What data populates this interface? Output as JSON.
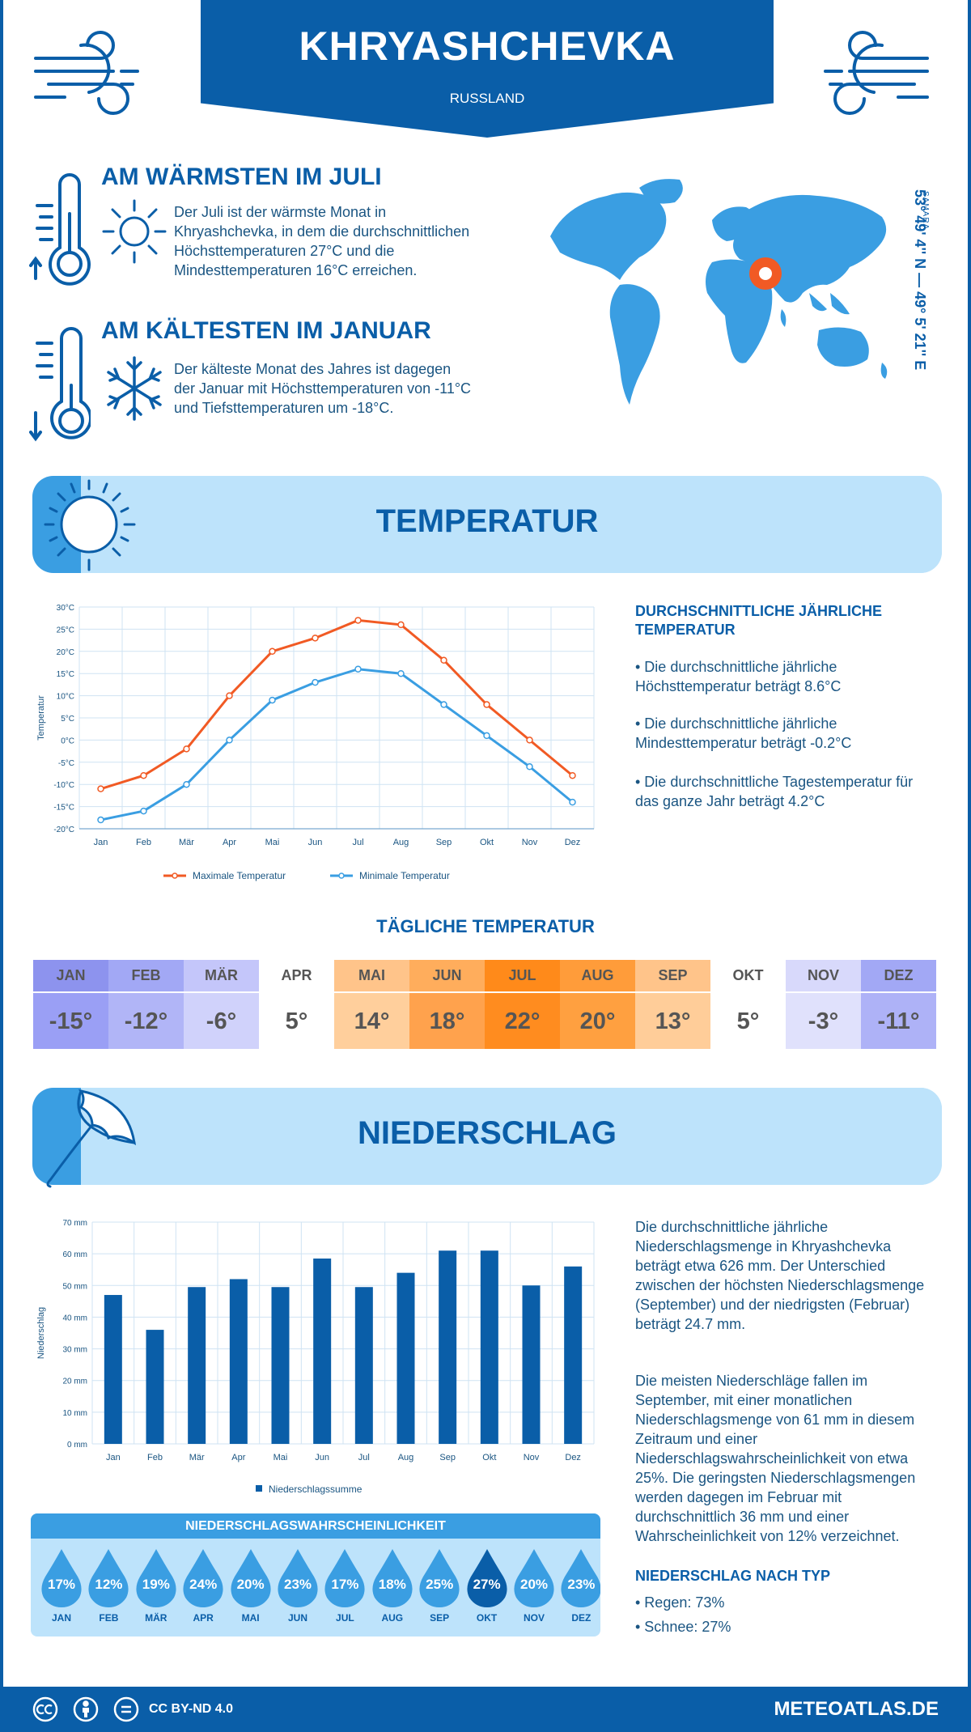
{
  "header": {
    "city": "KHRYASHCHEVKA",
    "country": "RUSSLAND"
  },
  "warmest": {
    "title": "AM WÄRMSTEN IM JULI",
    "text": "Der Juli ist der wärmste Monat in Khryashchevka, in dem die durchschnittlichen Höchsttemperaturen 27°C und die Mindesttemperaturen 16°C erreichen."
  },
  "coldest": {
    "title": "AM KÄLTESTEN IM JANUAR",
    "text": "Der kälteste Monat des Jahres ist dagegen der Januar mit Höchsttemperaturen von -11°C und Tiefsttemperaturen um -18°C."
  },
  "location": {
    "coords": "53° 49' 4'' N — 49° 5' 21'' E",
    "region": "SAMARA"
  },
  "temperature": {
    "title": "TEMPERATUR",
    "side_title": "DURCHSCHNITTLICHE JÄHRLICHE TEMPERATUR",
    "bullets": [
      "• Die durchschnittliche jährliche Höchsttemperatur beträgt 8.6°C",
      "• Die durchschnittliche jährliche Mindesttemperatur beträgt -0.2°C",
      "• Die durchschnittliche Tagestemperatur für das ganze Jahr beträgt 4.2°C"
    ]
  },
  "daily": {
    "title": "TÄGLICHE TEMPERATUR",
    "months": [
      "JAN",
      "FEB",
      "MÄR",
      "APR",
      "MAI",
      "JUN",
      "JUL",
      "AUG",
      "SEP",
      "OKT",
      "NOV",
      "DEZ"
    ],
    "values": [
      "-15°",
      "-12°",
      "-6°",
      "5°",
      "14°",
      "18°",
      "22°",
      "20°",
      "13°",
      "5°",
      "-3°",
      "-11°"
    ],
    "head_colors": [
      "#8d93ee",
      "#a2a8f5",
      "#c4c6fa",
      "#ffffff",
      "#ffc48a",
      "#ffad5c",
      "#ff8a1a",
      "#ff9c3a",
      "#ffc48a",
      "#ffffff",
      "#d8d9fb",
      "#a2a8f5"
    ],
    "body_colors": [
      "#9a9ff5",
      "#b1b5f7",
      "#d0d2fb",
      "#ffffff",
      "#ffcf9c",
      "#ffa24d",
      "#ff8c1f",
      "#ffa040",
      "#ffcd99",
      "#ffffff",
      "#e0e1fc",
      "#aeb2f7"
    ]
  },
  "precipitation": {
    "title": "NIEDERSCHLAG",
    "text1": "Die durchschnittliche jährliche Niederschlagsmenge in Khryashchevka beträgt etwa 626 mm. Der Unterschied zwischen der höchsten Niederschlagsmenge (September) und der niedrigsten (Februar) beträgt 24.7 mm.",
    "text2": "Die meisten Niederschläge fallen im September, mit einer monatlichen Niederschlagsmenge von 61 mm in diesem Zeitraum und einer Niederschlagswahrscheinlichkeit von etwa 25%. Die geringsten Niederschlagsmengen werden dagegen im Februar mit durchschnittlich 36 mm und einer Wahrscheinlichkeit von 12% verzeichnet.",
    "type_title": "NIEDERSCHLAG NACH TYP",
    "types": [
      "• Regen: 73%",
      "• Schnee: 27%"
    ]
  },
  "probability": {
    "title": "NIEDERSCHLAGSWAHRSCHEINLICHKEIT",
    "months": [
      "JAN",
      "FEB",
      "MÄR",
      "APR",
      "MAI",
      "JUN",
      "JUL",
      "AUG",
      "SEP",
      "OKT",
      "NOV",
      "DEZ"
    ],
    "values": [
      "17%",
      "12%",
      "19%",
      "24%",
      "20%",
      "23%",
      "17%",
      "18%",
      "25%",
      "27%",
      "20%",
      "23%"
    ],
    "highlight_index": 9,
    "colors": {
      "normal": "#3a9ee2",
      "highlight": "#0a5ea8"
    }
  },
  "footer": {
    "license": "CC BY-ND 4.0",
    "site": "METEOATLAS.DE"
  },
  "colors": {
    "brand": "#0a5ea8",
    "light": "#bde3fb",
    "accent": "#3a9ee2",
    "max_line": "#f15a24",
    "min_line": "#3a9ee2"
  },
  "icons": [
    "wind-icon",
    "thermometer-up-icon",
    "sun-icon",
    "thermometer-down-icon",
    "snowflake-icon",
    "sun-section-icon",
    "umbrella-icon",
    "location-pin-icon",
    "cc-icon",
    "person-icon",
    "equal-icon"
  ],
  "chart_data": [
    {
      "type": "line",
      "categories": [
        "Jan",
        "Feb",
        "Mär",
        "Apr",
        "Mai",
        "Jun",
        "Jul",
        "Aug",
        "Sep",
        "Okt",
        "Nov",
        "Dez"
      ],
      "series": [
        {
          "name": "Maximale Temperatur",
          "values": [
            -11,
            -8,
            -2,
            10,
            20,
            23,
            27,
            26,
            18,
            8,
            0,
            -8
          ],
          "color": "#f15a24"
        },
        {
          "name": "Minimale Temperatur",
          "values": [
            -18,
            -16,
            -10,
            0,
            9,
            13,
            16,
            15,
            8,
            1,
            -6,
            -14
          ],
          "color": "#3a9ee2"
        }
      ],
      "ylabel": "Temperatur",
      "ylim": [
        -20,
        30
      ],
      "yticks": [
        "-20°C",
        "-15°C",
        "-10°C",
        "-5°C",
        "0°C",
        "5°C",
        "10°C",
        "15°C",
        "20°C",
        "25°C",
        "30°C"
      ],
      "grid": true,
      "legend": "bottom"
    },
    {
      "type": "bar",
      "categories": [
        "Jan",
        "Feb",
        "Mär",
        "Apr",
        "Mai",
        "Jun",
        "Jul",
        "Aug",
        "Sep",
        "Okt",
        "Nov",
        "Dez"
      ],
      "series": [
        {
          "name": "Niederschlagssumme",
          "values": [
            47,
            36,
            49.5,
            52,
            49.5,
            58.5,
            49.5,
            54,
            61,
            61,
            50,
            56
          ],
          "color": "#0a5ea8"
        }
      ],
      "ylabel": "Niederschlag",
      "ylim": [
        0,
        70
      ],
      "yticks": [
        "0 mm",
        "10 mm",
        "20 mm",
        "30 mm",
        "40 mm",
        "50 mm",
        "60 mm",
        "70 mm"
      ],
      "grid": true,
      "legend": "bottom"
    }
  ]
}
